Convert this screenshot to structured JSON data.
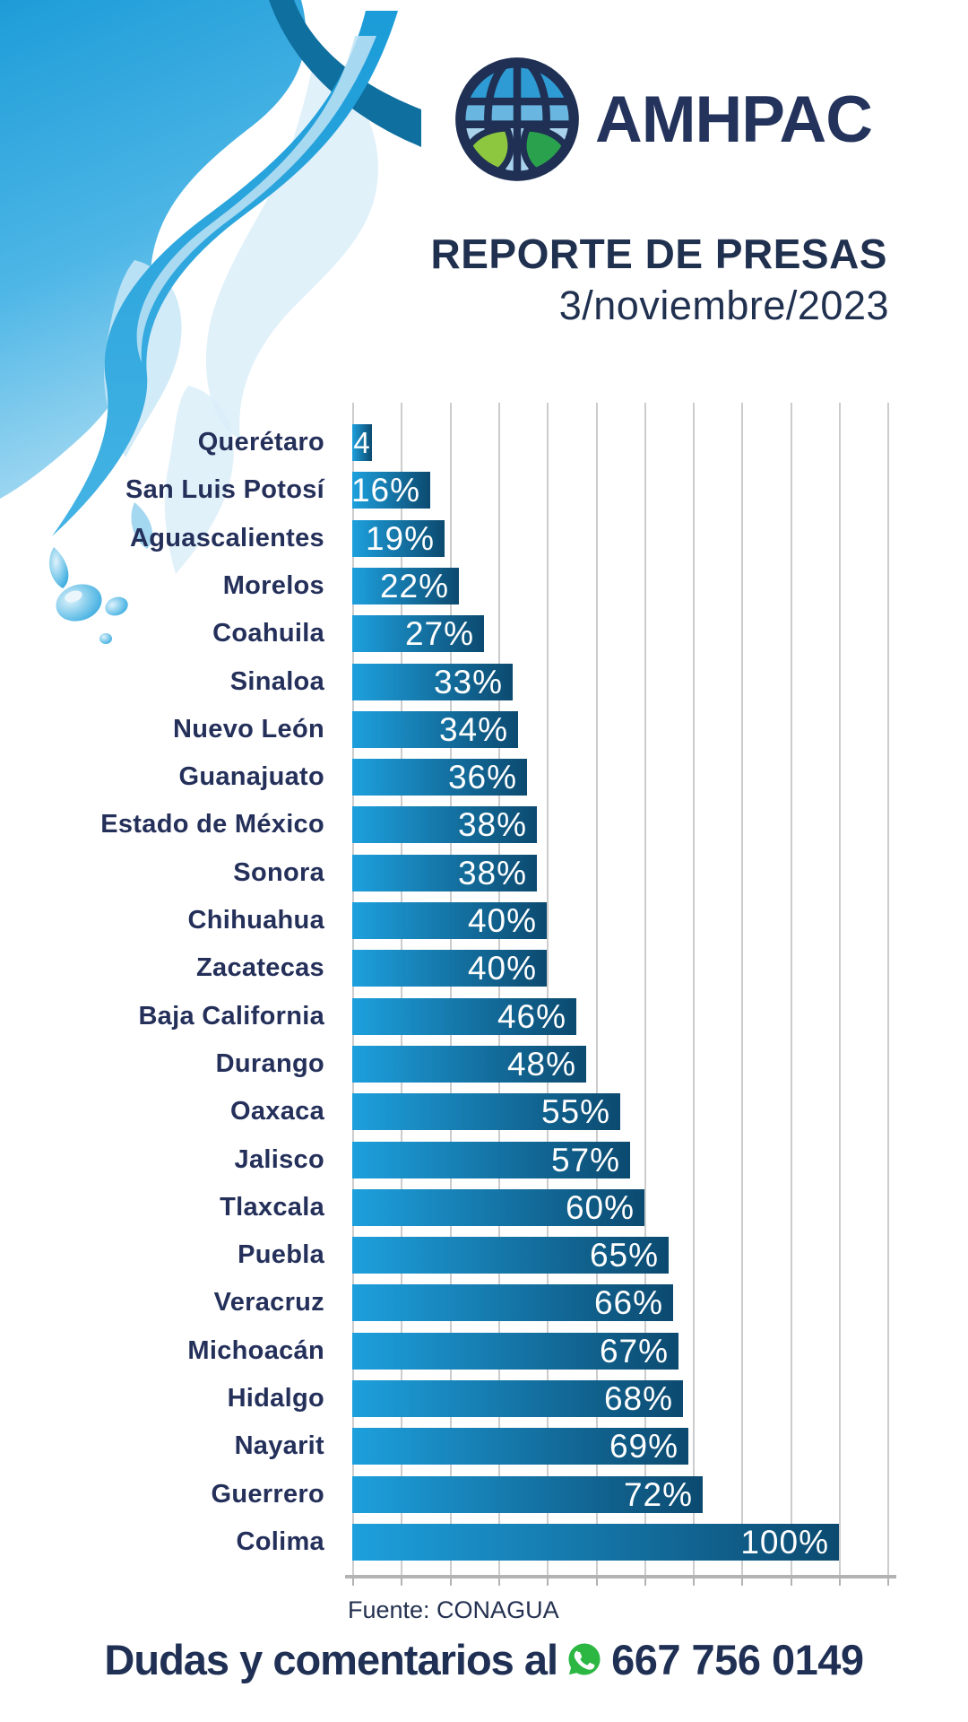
{
  "header": {
    "brand": "AMHPAC",
    "logo_icon": "globe-leaves-icon",
    "title": "REPORTE DE PRESAS",
    "date": "3/noviembre/2023"
  },
  "chart_data": {
    "type": "bar",
    "orientation": "horizontal",
    "title": "REPORTE DE PRESAS",
    "categories": [
      "Querétaro",
      "San Luis Potosí",
      "Aguascalientes",
      "Morelos",
      "Coahuila",
      "Sinaloa",
      "Nuevo León",
      "Guanajuato",
      "Estado de México",
      "Sonora",
      "Chihuahua",
      "Zacatecas",
      "Baja California",
      "Durango",
      "Oaxaca",
      "Jalisco",
      "Tlaxcala",
      "Puebla",
      "Veracruz",
      "Michoacán",
      "Hidalgo",
      "Nayarit",
      "Guerrero",
      "Colima"
    ],
    "values": [
      4,
      16,
      19,
      22,
      27,
      33,
      34,
      36,
      38,
      38,
      40,
      40,
      46,
      48,
      55,
      57,
      60,
      65,
      66,
      67,
      68,
      69,
      72,
      100
    ],
    "value_labels": [
      "4",
      "16%",
      "19%",
      "22%",
      "27%",
      "33%",
      "34%",
      "36%",
      "38%",
      "38%",
      "40%",
      "40%",
      "46%",
      "48%",
      "55%",
      "57%",
      "60%",
      "65%",
      "66%",
      "67%",
      "68%",
      "69%",
      "72%",
      "100%"
    ],
    "xlim": [
      0,
      110
    ],
    "gridline_step_percent": 10,
    "grid": true,
    "legend": false,
    "bar_gradient_left": "#1DA0DD",
    "bar_gradient_right": "#0C4A70",
    "source": "Fuente: CONAGUA"
  },
  "footer": {
    "text": "Dudas y comentarios al",
    "icon": "whatsapp-icon",
    "phone": "667 756 0149",
    "whatsapp_green": "#2CB742"
  },
  "colors": {
    "navy_text": "#20304F",
    "gridline": "#cccccc",
    "axis_baseline": "#b3b3b3",
    "splash_blue": "#29A7DE",
    "splash_dark": "#0F6F9F",
    "splash_light": "#BEE3F5"
  }
}
